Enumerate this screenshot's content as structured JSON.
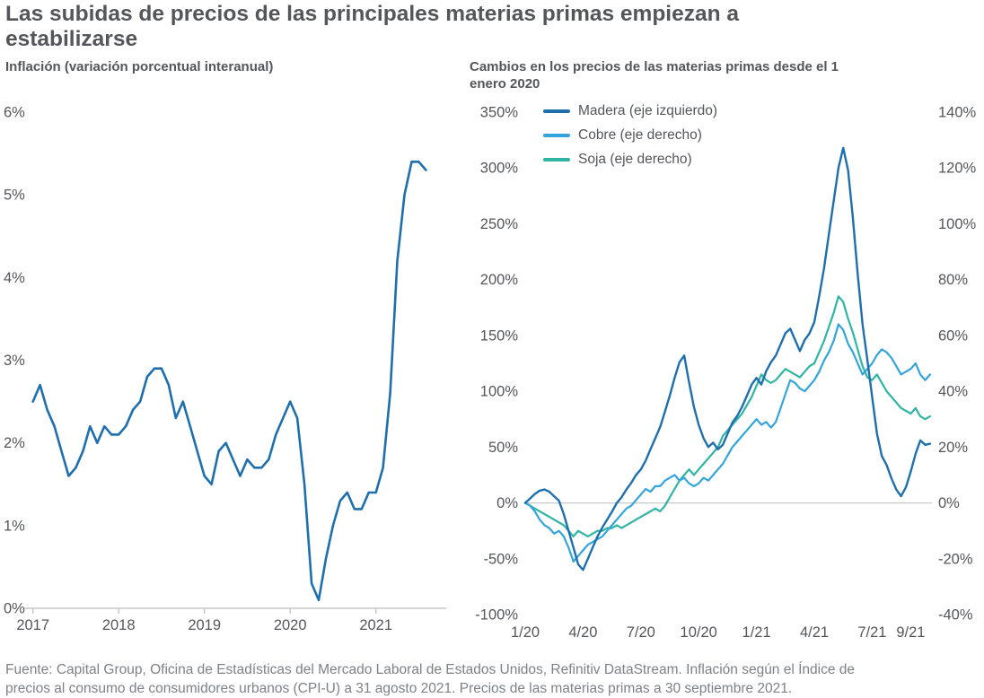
{
  "page": {
    "title": "Las subidas de precios de las principales materias primas empiezan a estabilizarse",
    "footer": "Fuente: Capital Group, Oficina de Estadísticas del Mercado Laboral de Estados Unidos, Refinitiv DataStream. Inflación según el Índice de precios al consumo de consumidores urbanos (CPI-U) a 31 agosto 2021. Precios de las materias primas a 30 septiembre 2021."
  },
  "colors": {
    "inflacion": "#1d6faf",
    "madera": "#1d6faf",
    "cobre": "#31a5dc",
    "soja": "#2eb5a4",
    "text_dark": "#54565a",
    "text_gray": "#7e8186",
    "axis_line": "#c8c9ca"
  },
  "chart_data": [
    {
      "type": "line",
      "title": "Inflación (variación porcentual interanual)",
      "xlabel": "",
      "ylabel": "",
      "xlim": [
        2016.93,
        2021.82
      ],
      "ylim": [
        0,
        6
      ],
      "grid": false,
      "baseline_axis": true,
      "xticks": [
        {
          "v": 2017,
          "label": "2017"
        },
        {
          "v": 2018,
          "label": "2018"
        },
        {
          "v": 2019,
          "label": "2019"
        },
        {
          "v": 2020,
          "label": "2020"
        },
        {
          "v": 2021,
          "label": "2021"
        }
      ],
      "yticks": [
        {
          "v": 0,
          "label": "0%"
        },
        {
          "v": 1,
          "label": "1%"
        },
        {
          "v": 2,
          "label": "2%"
        },
        {
          "v": 3,
          "label": "3%"
        },
        {
          "v": 4,
          "label": "4%"
        },
        {
          "v": 5,
          "label": "5%"
        },
        {
          "v": 6,
          "label": "6%"
        }
      ],
      "series": [
        {
          "name": "Inflación",
          "color_key": "inflacion",
          "width": 2.6,
          "x_start": 2017.0,
          "x_step": 0.08333,
          "y": [
            2.5,
            2.7,
            2.4,
            2.2,
            1.9,
            1.6,
            1.7,
            1.9,
            2.2,
            2.0,
            2.2,
            2.1,
            2.1,
            2.2,
            2.4,
            2.5,
            2.8,
            2.9,
            2.9,
            2.7,
            2.3,
            2.5,
            2.2,
            1.9,
            1.6,
            1.5,
            1.9,
            2.0,
            1.8,
            1.6,
            1.8,
            1.7,
            1.7,
            1.8,
            2.1,
            2.3,
            2.5,
            2.3,
            1.5,
            0.3,
            0.1,
            0.6,
            1.0,
            1.3,
            1.4,
            1.2,
            1.2,
            1.4,
            1.4,
            1.7,
            2.6,
            4.2,
            5.0,
            5.4,
            5.4,
            5.3
          ]
        }
      ]
    },
    {
      "type": "line",
      "title": "Cambios en los precios de las materias primas desde el 1 enero 2020",
      "xlabel": "",
      "ylabel": "",
      "xlim": [
        0,
        21.1
      ],
      "ylim_left": [
        -100,
        350
      ],
      "ylim_right": [
        -40,
        140
      ],
      "grid": false,
      "zero_line": true,
      "legend_position": "top-left",
      "xticks": [
        {
          "v": 0,
          "label": "1/20"
        },
        {
          "v": 3,
          "label": "4/20"
        },
        {
          "v": 6,
          "label": "7/20"
        },
        {
          "v": 9,
          "label": "10/20"
        },
        {
          "v": 12,
          "label": "1/21"
        },
        {
          "v": 15,
          "label": "4/21"
        },
        {
          "v": 18,
          "label": "7/21"
        },
        {
          "v": 20,
          "label": "9/21"
        }
      ],
      "yticks_left": [
        {
          "v": 350,
          "label": "350%"
        },
        {
          "v": 300,
          "label": "300%"
        },
        {
          "v": 250,
          "label": "250%"
        },
        {
          "v": 200,
          "label": "200%"
        },
        {
          "v": 150,
          "label": "150%"
        },
        {
          "v": 100,
          "label": "100%"
        },
        {
          "v": 50,
          "label": "50%"
        },
        {
          "v": 0,
          "label": "0%"
        },
        {
          "v": -50,
          "label": "-50%"
        },
        {
          "v": -100,
          "label": "-100%"
        }
      ],
      "yticks_right": [
        {
          "v": 140,
          "label": "140%"
        },
        {
          "v": 120,
          "label": "120%"
        },
        {
          "v": 100,
          "label": "100%"
        },
        {
          "v": 80,
          "label": "80%"
        },
        {
          "v": 60,
          "label": "60%"
        },
        {
          "v": 40,
          "label": "40%"
        },
        {
          "v": 20,
          "label": "20%"
        },
        {
          "v": 0,
          "label": "0%"
        },
        {
          "v": -20,
          "label": "-20%"
        },
        {
          "v": -40,
          "label": "-40%"
        }
      ],
      "series": [
        {
          "name": "Madera (eje izquierdo)",
          "axis": "left",
          "color_key": "madera",
          "width": 2.4,
          "x_start": 0,
          "x_step": 0.25,
          "y": [
            0,
            4,
            8,
            11,
            12,
            10,
            6,
            2,
            -10,
            -25,
            -40,
            -55,
            -60,
            -50,
            -40,
            -30,
            -22,
            -15,
            -8,
            0,
            5,
            12,
            18,
            25,
            30,
            38,
            48,
            58,
            68,
            82,
            96,
            112,
            126,
            132,
            108,
            86,
            70,
            58,
            50,
            54,
            48,
            52,
            62,
            72,
            78,
            86,
            96,
            106,
            112,
            106,
            118,
            126,
            132,
            142,
            152,
            156,
            146,
            136,
            146,
            152,
            162,
            185,
            210,
            240,
            270,
            300,
            318,
            298,
            255,
            205,
            160,
            128,
            95,
            62,
            42,
            34,
            22,
            12,
            6,
            14,
            28,
            44,
            56,
            52,
            53
          ]
        },
        {
          "name": "Cobre (eje derecho)",
          "axis": "right",
          "color_key": "cobre",
          "width": 2.2,
          "x_start": 0,
          "x_step": 0.25,
          "y": [
            0,
            -1,
            -3,
            -6,
            -8,
            -9,
            -11,
            -10,
            -12,
            -16,
            -21,
            -19,
            -17,
            -15,
            -14,
            -13,
            -12,
            -10,
            -8,
            -6,
            -4,
            -2,
            -1,
            1,
            3,
            5,
            4,
            6,
            6,
            8,
            9,
            10,
            8,
            9,
            7,
            6,
            7,
            9,
            8,
            10,
            12,
            14,
            17,
            20,
            22,
            24,
            26,
            28,
            30,
            28,
            29,
            27,
            29,
            34,
            39,
            44,
            43,
            41,
            40,
            42,
            44,
            47,
            51,
            54,
            58,
            64,
            62,
            57,
            54,
            50,
            46,
            48,
            50,
            53,
            55,
            54,
            52,
            49,
            46,
            47,
            48,
            50,
            46,
            44,
            46
          ]
        },
        {
          "name": "Soja (eje derecho)",
          "axis": "right",
          "color_key": "soja",
          "width": 2.2,
          "x_start": 0,
          "x_step": 0.25,
          "y": [
            0,
            -1,
            -2,
            -3,
            -4,
            -5,
            -6,
            -7,
            -8,
            -10,
            -12,
            -10,
            -11,
            -12,
            -11,
            -10,
            -10,
            -9,
            -9,
            -8,
            -9,
            -8,
            -7,
            -6,
            -5,
            -4,
            -3,
            -2,
            -3,
            -1,
            2,
            5,
            8,
            10,
            12,
            10,
            12,
            14,
            16,
            18,
            20,
            24,
            26,
            28,
            30,
            32,
            35,
            38,
            42,
            46,
            44,
            43,
            44,
            46,
            48,
            47,
            46,
            45,
            47,
            49,
            50,
            54,
            58,
            63,
            68,
            74,
            72,
            66,
            61,
            55,
            49,
            45,
            44,
            46,
            43,
            40,
            38,
            36,
            34,
            33,
            32,
            34,
            31,
            30,
            31
          ]
        }
      ]
    }
  ]
}
